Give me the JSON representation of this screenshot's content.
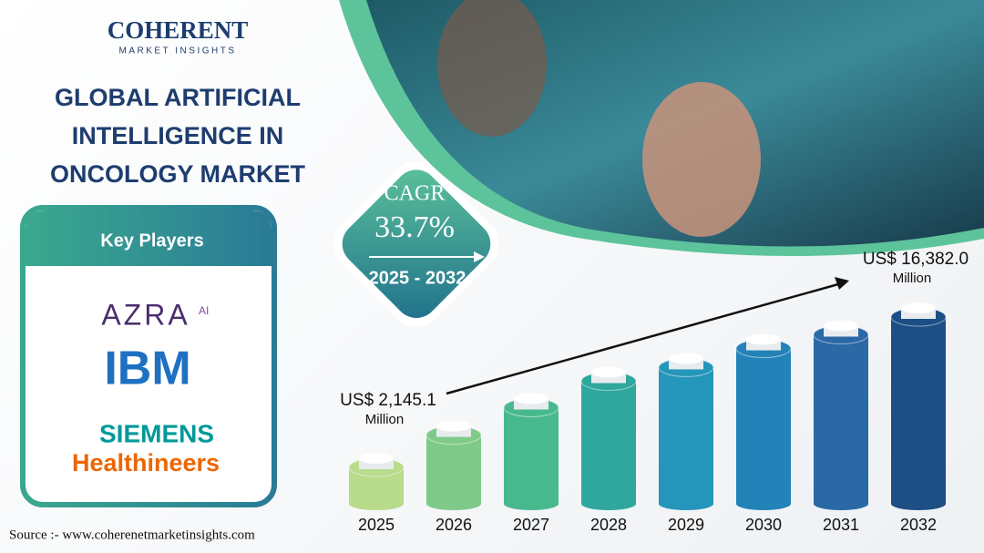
{
  "brand": {
    "name": "COHERENT",
    "tagline": "MARKET INSIGHTS"
  },
  "key_players": {
    "heading": "Key Players",
    "companies": [
      {
        "name": "AZRA",
        "suffix": "AI"
      },
      {
        "name": "IBM"
      },
      {
        "name": "SIEMENS",
        "suffix": "Healthineers"
      }
    ]
  },
  "cagr": {
    "label": "CAGR",
    "value": "33.7%",
    "period": "2025 - 2032"
  },
  "source": "Source :- www.coherenetmarketinsights.com",
  "chart_data": {
    "type": "bar",
    "title": "GLOBAL ARTIFICIAL INTELLIGENCE IN ONCOLOGY MARKET",
    "categories": [
      "2025",
      "2026",
      "2027",
      "2028",
      "2029",
      "2030",
      "2031",
      "2032"
    ],
    "values": [
      2145.1,
      5200,
      7800,
      10300,
      11600,
      13400,
      14700,
      16382.0
    ],
    "value_labels": [
      "US$ 2,145.1",
      null,
      null,
      null,
      null,
      null,
      null,
      "US$ 16,382.0"
    ],
    "value_unit": "Million",
    "colors": [
      "#b9db8c",
      "#7fca88",
      "#48b98f",
      "#2fa79d",
      "#2596bb",
      "#2383b8",
      "#2a69a6",
      "#1d4e84"
    ]
  }
}
